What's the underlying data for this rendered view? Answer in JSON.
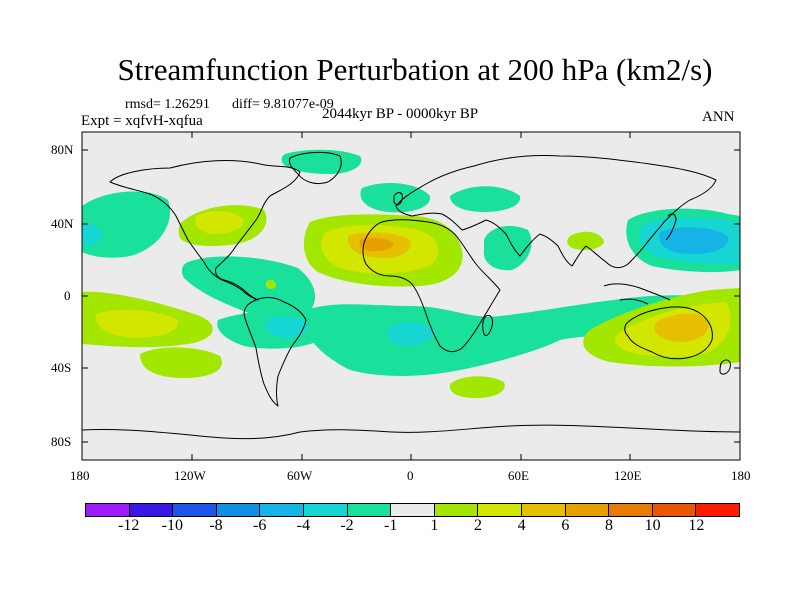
{
  "title": "Streamfunction Perturbation at 200 hPa (km2/s)",
  "stats": {
    "rmsd": "rmsd= 1.26291",
    "diff": "diff= 9.81077e-09"
  },
  "experiment": "Expt = xqfvH-xqfua",
  "period": "2044kyr BP - 0000kyr BP",
  "season": "ANN",
  "axes": {
    "lat_ticks": [
      "80N",
      "40N",
      "0",
      "40S",
      "80S"
    ],
    "lon_ticks": [
      "180",
      "120W",
      "60W",
      "0",
      "60E",
      "120E",
      "180"
    ]
  },
  "colorbar": {
    "colors": [
      "#9f1bff",
      "#3c16e6",
      "#1e55e6",
      "#0f8fe6",
      "#16b4e6",
      "#15d6d2",
      "#19e09b",
      "#ebebeb",
      "#a3e600",
      "#d2e600",
      "#e6c000",
      "#e6a000",
      "#e67d00",
      "#ea5500",
      "#ff1c00"
    ],
    "labels": [
      "-12",
      "-10",
      "-8",
      "-6",
      "-4",
      "-2",
      "-1",
      "1",
      "2",
      "4",
      "6",
      "8",
      "10",
      "12"
    ]
  },
  "levels": {
    "neg1": "#19e09b",
    "neg2": "#15d6d2",
    "neg4": "#16b4e6",
    "pos1": "#a3e600",
    "pos2": "#d2e600",
    "pos4": "#e6c000",
    "pos6": "#e6a000"
  }
}
